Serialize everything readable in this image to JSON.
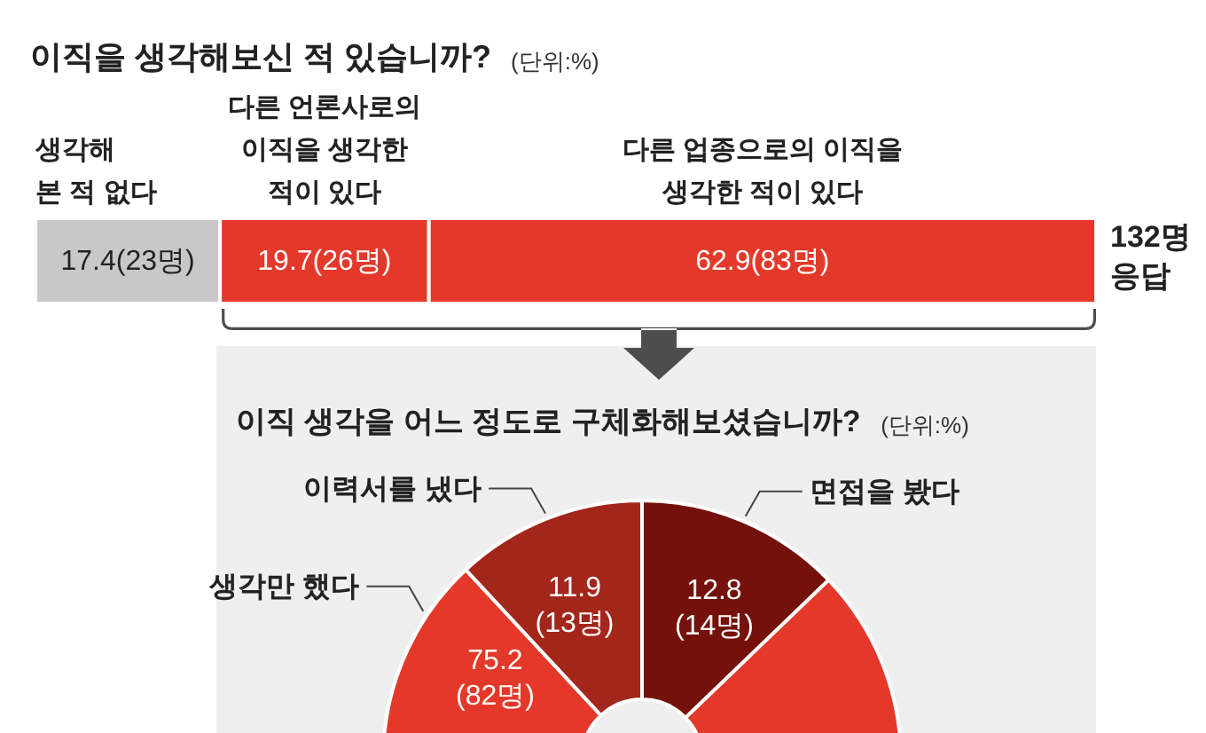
{
  "chart_data": [
    {
      "type": "bar",
      "title": "이직을 생각해보신 적 있습니까?",
      "subtitle": "(단위:%)",
      "orientation": "horizontal",
      "stacked": true,
      "tick_labels": false,
      "categories": [
        null
      ],
      "xlim": [
        0,
        100
      ],
      "series": [
        {
          "name": "생각해\n본 적 없다",
          "color": "#c8c8c8",
          "values": [
            17.4
          ],
          "value_labels": [
            "17.4(23명)"
          ]
        },
        {
          "name": "다른 언론사로의 이직을\n생각한 적이 있다",
          "color": "#e4392a",
          "values": [
            19.7
          ],
          "value_labels": [
            "19.7(26명)"
          ]
        },
        {
          "name": "다른 업종으로의 이직을\n생각한 적이 있다",
          "color": "#e4392a",
          "values": [
            62.9
          ],
          "value_labels": [
            "62.9(83명)"
          ]
        }
      ],
      "annotations": [
        "132명\n응답"
      ]
    },
    {
      "type": "donut",
      "title": "이직 생각을 어느 정도로 구체화해보셨습니까?",
      "subtitle": "(단위:%)",
      "categories": [
        "면접을 봤다",
        "생각만 했다",
        "이력서를 냈다"
      ],
      "values": [
        12.8,
        75.2,
        11.9
      ],
      "colors": [
        "#74110a",
        "#e4392a",
        "#a3261b"
      ],
      "value_labels": [
        "12.8\n(14명)",
        "75.2\n(82명)",
        "11.9\n(13명)"
      ]
    }
  ]
}
